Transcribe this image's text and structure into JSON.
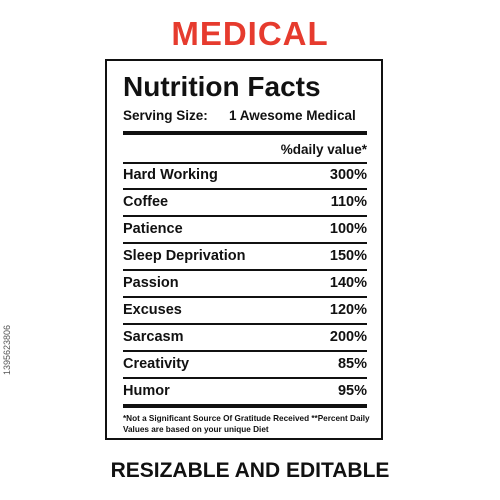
{
  "headline": "MEDICAL",
  "label": {
    "title": "Nutrition Facts",
    "serving_label": "Serving Size:",
    "serving_value": "1 Awesome Medical",
    "daily_value_header": "%daily value*",
    "rows": [
      {
        "name": "Hard Working",
        "value": "300%"
      },
      {
        "name": "Coffee",
        "value": "110%"
      },
      {
        "name": "Patience",
        "value": "100%"
      },
      {
        "name": "Sleep Deprivation",
        "value": "150%"
      },
      {
        "name": "Passion",
        "value": "140%"
      },
      {
        "name": "Excuses",
        "value": "120%"
      },
      {
        "name": "Sarcasm",
        "value": "200%"
      },
      {
        "name": "Creativity",
        "value": "85%"
      },
      {
        "name": "Humor",
        "value": "95%"
      }
    ],
    "footnote": "*Not a Significant Source Of Gratitude Received **Percent Daily Values are based on your  unique Diet"
  },
  "caption": "RESIZABLE AND EDITABLE",
  "side_code": "1395623806",
  "colors": {
    "headline": "#e63b2e",
    "text": "#111111",
    "background": "#ffffff"
  }
}
